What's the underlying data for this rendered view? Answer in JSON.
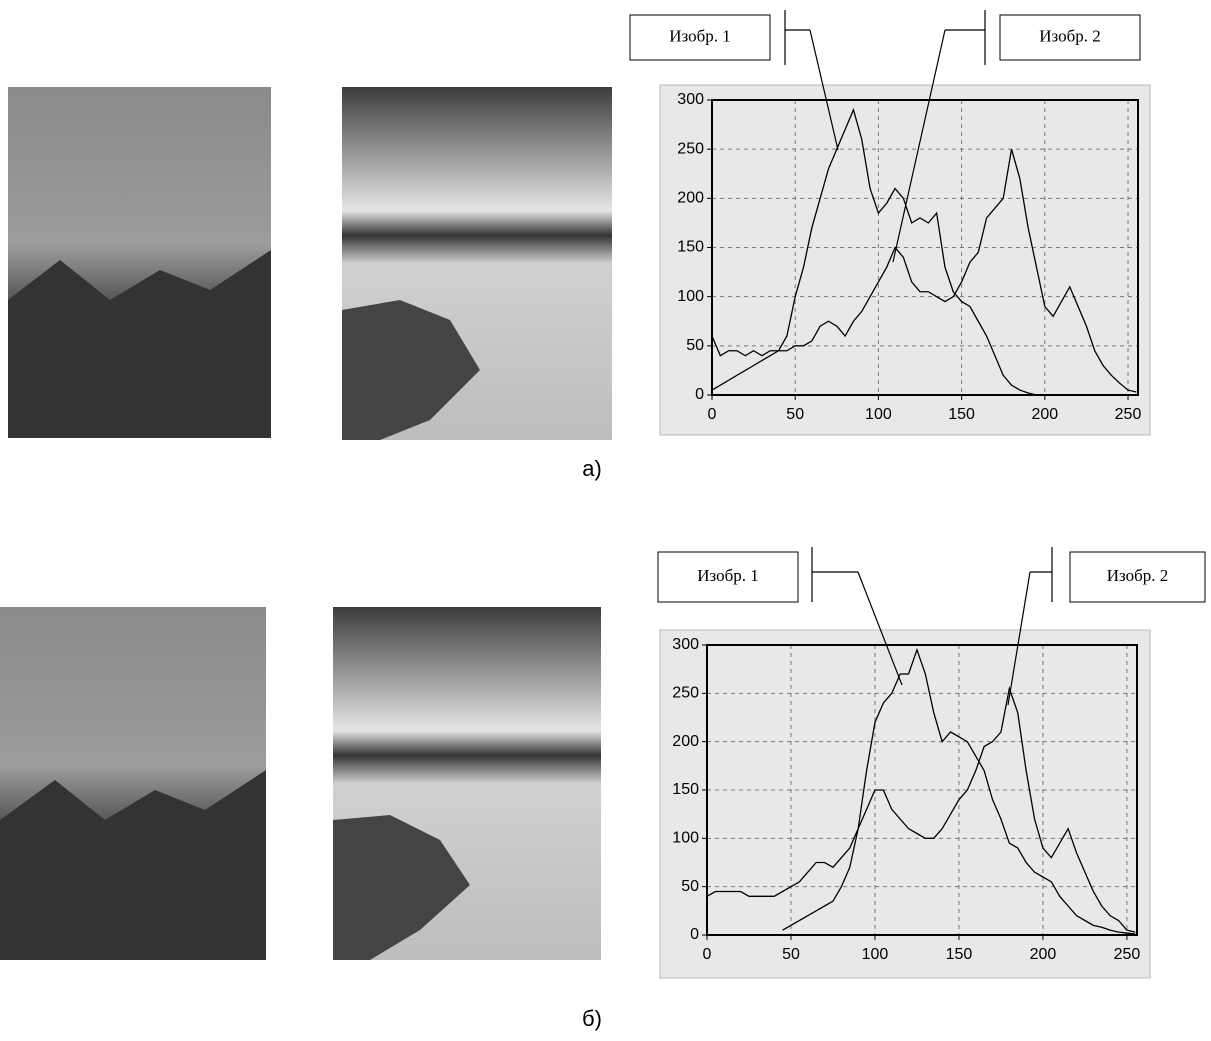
{
  "chart_data": [
    {
      "type": "line",
      "caption": "а)",
      "grid": true,
      "x": [
        0,
        5,
        10,
        15,
        20,
        25,
        30,
        35,
        40,
        45,
        50,
        55,
        60,
        65,
        70,
        75,
        80,
        85,
        90,
        95,
        100,
        105,
        110,
        115,
        120,
        125,
        130,
        135,
        140,
        145,
        150,
        155,
        160,
        165,
        170,
        175,
        180,
        185,
        190,
        195,
        200,
        205,
        210,
        215,
        220,
        225,
        230,
        235,
        240,
        245,
        250,
        255
      ],
      "xlim": [
        0,
        256
      ],
      "xticks": [
        0,
        50,
        100,
        150,
        200,
        250
      ],
      "ylim": [
        0,
        300
      ],
      "yticks": [
        0,
        50,
        100,
        150,
        200,
        250,
        300
      ],
      "series": [
        {
          "name": "Изобр. 1",
          "color": "#000000",
          "values": [
            60,
            40,
            45,
            45,
            40,
            45,
            40,
            45,
            45,
            60,
            100,
            130,
            170,
            200,
            230,
            250,
            270,
            290,
            260,
            210,
            185,
            195,
            210,
            200,
            175,
            180,
            175,
            185,
            130,
            105,
            95,
            90,
            75,
            60,
            40,
            20,
            10,
            5,
            2,
            0,
            0,
            null,
            null,
            null,
            null,
            null,
            null,
            null,
            null,
            null,
            null,
            null
          ]
        },
        {
          "name": "Изобр. 2",
          "color": "#000000",
          "values": [
            5,
            10,
            15,
            20,
            25,
            30,
            35,
            40,
            45,
            45,
            50,
            50,
            55,
            70,
            75,
            70,
            60,
            75,
            85,
            100,
            115,
            130,
            150,
            140,
            115,
            105,
            105,
            100,
            95,
            100,
            115,
            135,
            145,
            180,
            190,
            200,
            250,
            220,
            170,
            130,
            90,
            80,
            95,
            110,
            90,
            70,
            45,
            30,
            20,
            12,
            5,
            3
          ]
        }
      ]
    },
    {
      "type": "line",
      "caption": "б)",
      "grid": true,
      "x": [
        0,
        5,
        10,
        15,
        20,
        25,
        30,
        35,
        40,
        45,
        50,
        55,
        60,
        65,
        70,
        75,
        80,
        85,
        90,
        95,
        100,
        105,
        110,
        115,
        120,
        125,
        130,
        135,
        140,
        145,
        150,
        155,
        160,
        165,
        170,
        175,
        180,
        185,
        190,
        195,
        200,
        205,
        210,
        215,
        220,
        225,
        230,
        235,
        240,
        245,
        250,
        255
      ],
      "xlim": [
        0,
        256
      ],
      "xticks": [
        0,
        50,
        100,
        150,
        200,
        250
      ],
      "ylim": [
        0,
        300
      ],
      "yticks": [
        0,
        50,
        100,
        150,
        200,
        250,
        300
      ],
      "series": [
        {
          "name": "Изобр. 1",
          "color": "#000000",
          "values": [
            null,
            null,
            null,
            null,
            null,
            null,
            null,
            null,
            null,
            5,
            10,
            15,
            20,
            25,
            30,
            35,
            50,
            70,
            110,
            170,
            220,
            240,
            250,
            270,
            270,
            295,
            270,
            230,
            200,
            210,
            205,
            200,
            185,
            170,
            140,
            120,
            95,
            90,
            75,
            65,
            60,
            55,
            40,
            30,
            20,
            15,
            10,
            8,
            5,
            3,
            2,
            1
          ]
        },
        {
          "name": "Изобр. 2",
          "color": "#000000",
          "values": [
            40,
            45,
            45,
            45,
            45,
            40,
            40,
            40,
            40,
            45,
            50,
            55,
            65,
            75,
            75,
            70,
            80,
            90,
            110,
            130,
            150,
            150,
            130,
            120,
            110,
            105,
            100,
            100,
            110,
            125,
            140,
            150,
            170,
            195,
            200,
            210,
            255,
            230,
            170,
            120,
            90,
            80,
            95,
            110,
            85,
            65,
            45,
            30,
            20,
            15,
            5,
            3
          ]
        }
      ]
    }
  ]
}
